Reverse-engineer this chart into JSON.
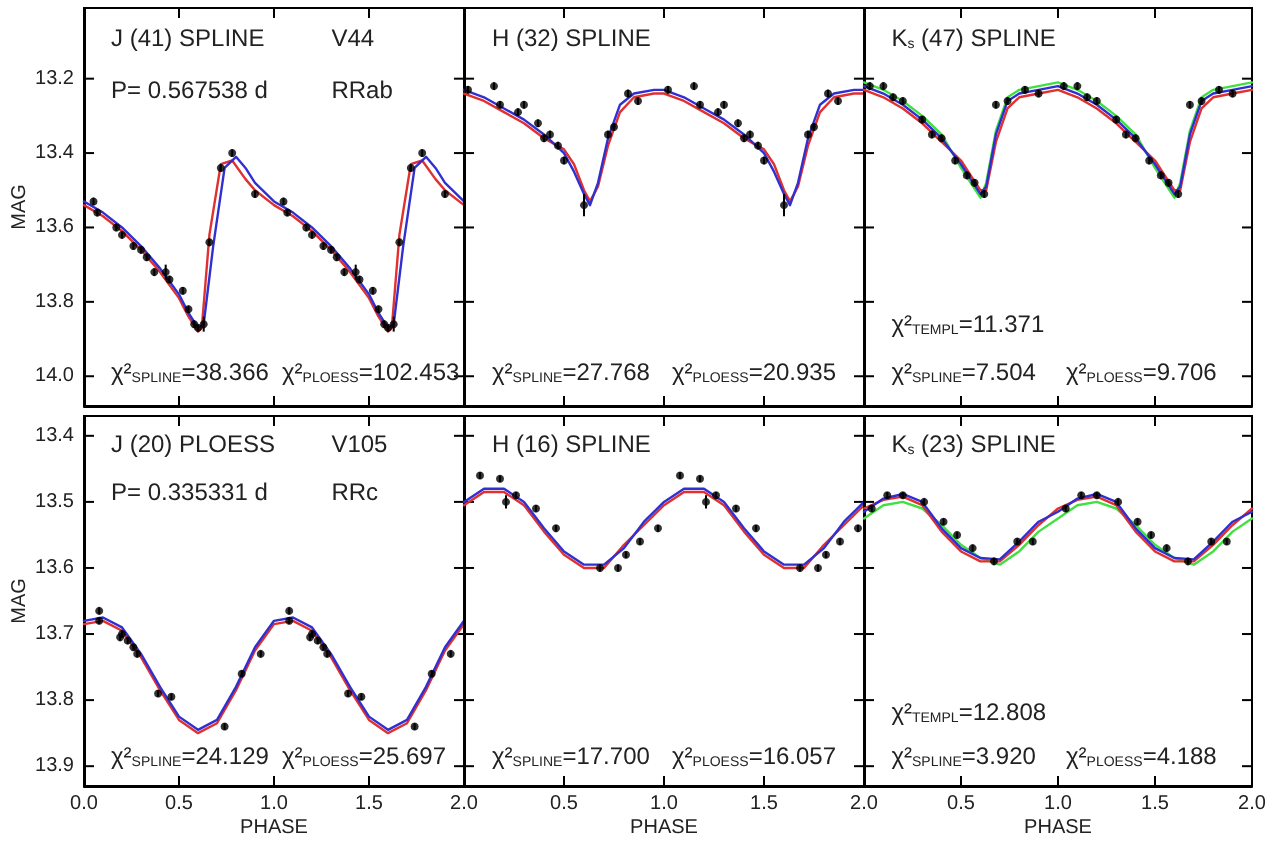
{
  "chart_data": [
    {
      "type": "scatter",
      "ylabel": "MAG",
      "tick_labels": "y",
      "annotations": [
        "J (41) SPLINE",
        "V44",
        "P= 0.567538 d",
        "RRab",
        "χ²$_{SPLINE}$=38.366",
        "χ²$_{PLOESS}$=102.453"
      ],
      "xlim": [
        0,
        2
      ],
      "xticks": [
        0,
        0.5,
        1,
        1.5,
        2
      ],
      "ylim": [
        14.08,
        13.01
      ],
      "yticks": [
        13.2,
        13.4,
        13.6,
        13.8,
        {
          "value": 14,
          "label": "14.0"
        }
      ],
      "series": [
        {
          "type": "line",
          "color": "#e03030",
          "line_style": "solid",
          "marker": "none",
          "x": [
            0,
            0.1,
            0.2,
            0.3,
            0.4,
            0.5,
            0.55,
            0.6,
            0.62,
            0.66,
            0.72,
            0.78,
            0.85,
            0.9,
            1,
            1.1,
            1.2,
            1.3,
            1.4,
            1.5,
            1.55,
            1.6,
            1.62,
            1.66,
            1.72,
            1.78,
            1.85,
            1.9,
            2
          ],
          "values": [
            13.54,
            13.57,
            13.61,
            13.66,
            13.72,
            13.79,
            13.84,
            13.88,
            13.87,
            13.62,
            13.43,
            13.42,
            13.47,
            13.5,
            13.54,
            13.57,
            13.61,
            13.66,
            13.72,
            13.79,
            13.84,
            13.88,
            13.87,
            13.62,
            13.43,
            13.42,
            13.47,
            13.5,
            13.54
          ]
        },
        {
          "type": "line",
          "color": "#3030d0",
          "line_style": "solid",
          "marker": "none",
          "x": [
            0,
            0.1,
            0.2,
            0.3,
            0.4,
            0.5,
            0.55,
            0.6,
            0.63,
            0.68,
            0.74,
            0.8,
            0.85,
            0.9,
            1,
            1.1,
            1.2,
            1.3,
            1.4,
            1.5,
            1.55,
            1.6,
            1.63,
            1.68,
            1.74,
            1.8,
            1.85,
            1.9,
            2
          ],
          "values": [
            13.53,
            13.56,
            13.6,
            13.65,
            13.71,
            13.78,
            13.83,
            13.87,
            13.86,
            13.65,
            13.44,
            13.41,
            13.44,
            13.48,
            13.53,
            13.56,
            13.6,
            13.65,
            13.71,
            13.78,
            13.83,
            13.87,
            13.86,
            13.65,
            13.44,
            13.41,
            13.44,
            13.48,
            13.53
          ]
        },
        {
          "color": "#000000",
          "marker": "circle",
          "x": [
            0.05,
            0.07,
            0.17,
            0.2,
            0.26,
            0.3,
            0.33,
            0.37,
            0.43,
            0.45,
            0.52,
            0.55,
            0.58,
            0.6,
            0.63,
            0.66,
            0.72,
            0.78,
            0.9,
            1.05,
            1.07,
            1.17,
            1.2,
            1.26,
            1.3,
            1.33,
            1.37,
            1.43,
            1.45,
            1.52,
            1.55,
            1.58,
            1.6,
            1.63,
            1.66,
            1.72,
            1.78,
            1.9
          ],
          "values": [
            13.53,
            13.56,
            13.6,
            13.62,
            13.65,
            13.66,
            13.68,
            13.72,
            13.72,
            13.74,
            13.77,
            13.82,
            13.86,
            13.87,
            13.86,
            13.64,
            13.44,
            13.4,
            13.51,
            13.53,
            13.56,
            13.6,
            13.62,
            13.65,
            13.66,
            13.68,
            13.72,
            13.72,
            13.74,
            13.77,
            13.82,
            13.86,
            13.87,
            13.86,
            13.64,
            13.44,
            13.4,
            13.51
          ],
          "errors": [
            0.01,
            0.01,
            0.01,
            0.01,
            0.01,
            0.01,
            0.01,
            0.01,
            0.02,
            0.01,
            0.01,
            0.01,
            0.01,
            0.01,
            0.02,
            0.01,
            0.01,
            0.01,
            0.01,
            0.01,
            0.01,
            0.01,
            0.01,
            0.01,
            0.01,
            0.01,
            0.01,
            0.02,
            0.01,
            0.01,
            0.01,
            0.01,
            0.01,
            0.02,
            0.01,
            0.01,
            0.01,
            0.01
          ]
        }
      ]
    },
    {
      "type": "scatter",
      "tick_labels": false,
      "annotations": [
        "H (32) SPLINE",
        "χ²$_{SPLINE}$=27.768",
        "χ²$_{PLOESS}$=20.935"
      ],
      "xlim": [
        0,
        2
      ],
      "xticks": [
        0,
        0.5,
        1,
        1.5,
        2
      ],
      "ylim": [
        14.08,
        13.01
      ],
      "yticks": [
        13.2,
        13.4,
        13.6,
        13.8,
        14
      ],
      "series": [
        {
          "type": "line",
          "color": "#e03030",
          "line_style": "solid",
          "marker": "none",
          "x": [
            0,
            0.1,
            0.2,
            0.3,
            0.4,
            0.5,
            0.55,
            0.6,
            0.63,
            0.67,
            0.72,
            0.78,
            0.85,
            0.95,
            1,
            1.1,
            1.2,
            1.3,
            1.4,
            1.5,
            1.55,
            1.6,
            1.63,
            1.67,
            1.72,
            1.78,
            1.85,
            1.95,
            2
          ],
          "values": [
            13.24,
            13.26,
            13.29,
            13.32,
            13.36,
            13.39,
            13.43,
            13.5,
            13.53,
            13.49,
            13.38,
            13.29,
            13.25,
            13.24,
            13.24,
            13.26,
            13.29,
            13.32,
            13.36,
            13.39,
            13.43,
            13.5,
            13.53,
            13.49,
            13.38,
            13.29,
            13.25,
            13.24,
            13.24
          ]
        },
        {
          "type": "line",
          "color": "#3030d0",
          "line_style": "solid",
          "marker": "none",
          "x": [
            0,
            0.1,
            0.2,
            0.3,
            0.4,
            0.5,
            0.55,
            0.6,
            0.63,
            0.67,
            0.72,
            0.78,
            0.85,
            0.95,
            1,
            1.1,
            1.2,
            1.3,
            1.4,
            1.5,
            1.55,
            1.6,
            1.63,
            1.67,
            1.72,
            1.78,
            1.85,
            1.95,
            2
          ],
          "values": [
            13.23,
            13.25,
            13.28,
            13.31,
            13.35,
            13.4,
            13.45,
            13.51,
            13.54,
            13.48,
            13.36,
            13.27,
            13.24,
            13.23,
            13.23,
            13.25,
            13.28,
            13.31,
            13.35,
            13.4,
            13.45,
            13.51,
            13.54,
            13.48,
            13.36,
            13.27,
            13.24,
            13.23,
            13.23
          ]
        },
        {
          "color": "#000000",
          "marker": "circle",
          "x": [
            0.02,
            0.15,
            0.18,
            0.27,
            0.3,
            0.37,
            0.4,
            0.43,
            0.47,
            0.5,
            0.6,
            0.72,
            0.75,
            0.82,
            0.87,
            1.02,
            1.15,
            1.18,
            1.27,
            1.3,
            1.37,
            1.4,
            1.43,
            1.47,
            1.5,
            1.6,
            1.72,
            1.75,
            1.82,
            1.87
          ],
          "values": [
            13.23,
            13.22,
            13.27,
            13.29,
            13.27,
            13.32,
            13.36,
            13.35,
            13.38,
            13.42,
            13.54,
            13.35,
            13.33,
            13.24,
            13.26,
            13.23,
            13.22,
            13.27,
            13.29,
            13.27,
            13.32,
            13.36,
            13.35,
            13.38,
            13.42,
            13.54,
            13.35,
            13.33,
            13.24,
            13.26
          ],
          "errors": [
            0.01,
            0.01,
            0.01,
            0.01,
            0.01,
            0.01,
            0.01,
            0.01,
            0.01,
            0.01,
            0.03,
            0.01,
            0.01,
            0.01,
            0.01,
            0.01,
            0.01,
            0.01,
            0.01,
            0.01,
            0.01,
            0.01,
            0.01,
            0.01,
            0.01,
            0.03,
            0.01,
            0.01,
            0.01,
            0.01
          ]
        }
      ]
    },
    {
      "type": "scatter",
      "tick_labels": false,
      "annotations": [
        "K$_{s}$ (47) SPLINE",
        "χ²$_{TEMPL}$=11.371",
        "χ²$_{SPLINE}$=7.504",
        "χ²$_{PLOESS}$=9.706"
      ],
      "xlim": [
        0,
        2
      ],
      "xticks": [
        0,
        0.5,
        1,
        1.5,
        2
      ],
      "ylim": [
        14.08,
        13.01
      ],
      "yticks": [
        13.2,
        13.4,
        13.6,
        13.8,
        14
      ],
      "series": [
        {
          "type": "line",
          "color": "#40e040",
          "line_style": "solid",
          "marker": "none",
          "x": [
            0,
            0.1,
            0.2,
            0.3,
            0.4,
            0.5,
            0.55,
            0.6,
            0.63,
            0.68,
            0.74,
            0.8,
            0.9,
            1,
            1.1,
            1.2,
            1.3,
            1.4,
            1.5,
            1.55,
            1.6,
            1.63,
            1.68,
            1.74,
            1.8,
            1.9,
            2
          ],
          "values": [
            13.21,
            13.23,
            13.26,
            13.3,
            13.35,
            13.44,
            13.48,
            13.52,
            13.48,
            13.34,
            13.25,
            13.23,
            13.22,
            13.21,
            13.23,
            13.26,
            13.3,
            13.35,
            13.44,
            13.48,
            13.52,
            13.48,
            13.34,
            13.25,
            13.23,
            13.22,
            13.21
          ]
        },
        {
          "type": "line",
          "color": "#e03030",
          "line_style": "solid",
          "marker": "none",
          "x": [
            0,
            0.1,
            0.2,
            0.3,
            0.4,
            0.5,
            0.55,
            0.6,
            0.63,
            0.68,
            0.74,
            0.8,
            0.9,
            1,
            1.1,
            1.2,
            1.3,
            1.4,
            1.5,
            1.55,
            1.6,
            1.63,
            1.68,
            1.74,
            1.8,
            1.9,
            2
          ],
          "values": [
            13.23,
            13.25,
            13.28,
            13.32,
            13.37,
            13.42,
            13.46,
            13.5,
            13.5,
            13.37,
            13.28,
            13.25,
            13.24,
            13.23,
            13.25,
            13.28,
            13.32,
            13.37,
            13.42,
            13.46,
            13.5,
            13.5,
            13.37,
            13.28,
            13.25,
            13.24,
            13.23
          ]
        },
        {
          "type": "line",
          "color": "#3030d0",
          "line_style": "solid",
          "marker": "none",
          "x": [
            0,
            0.1,
            0.2,
            0.3,
            0.4,
            0.5,
            0.55,
            0.6,
            0.63,
            0.68,
            0.74,
            0.8,
            0.9,
            1,
            1.1,
            1.2,
            1.3,
            1.4,
            1.5,
            1.55,
            1.6,
            1.63,
            1.68,
            1.74,
            1.8,
            1.9,
            2
          ],
          "values": [
            13.22,
            13.24,
            13.27,
            13.31,
            13.36,
            13.43,
            13.47,
            13.51,
            13.49,
            13.35,
            13.26,
            13.24,
            13.23,
            13.22,
            13.24,
            13.27,
            13.31,
            13.36,
            13.43,
            13.47,
            13.51,
            13.49,
            13.35,
            13.26,
            13.24,
            13.23,
            13.22
          ]
        },
        {
          "color": "#000000",
          "marker": "circle",
          "x": [
            0.03,
            0.1,
            0.15,
            0.2,
            0.3,
            0.35,
            0.4,
            0.47,
            0.53,
            0.57,
            0.62,
            0.68,
            0.74,
            0.83,
            0.9,
            1.03,
            1.1,
            1.15,
            1.2,
            1.3,
            1.35,
            1.4,
            1.47,
            1.53,
            1.57,
            1.62,
            1.68,
            1.74,
            1.83,
            1.9
          ],
          "values": [
            13.22,
            13.22,
            13.25,
            13.26,
            13.31,
            13.35,
            13.36,
            13.42,
            13.46,
            13.48,
            13.51,
            13.27,
            13.26,
            13.23,
            13.24,
            13.22,
            13.22,
            13.25,
            13.26,
            13.31,
            13.35,
            13.36,
            13.42,
            13.46,
            13.48,
            13.51,
            13.27,
            13.26,
            13.23,
            13.24
          ],
          "errors": [
            0.01,
            0.01,
            0.01,
            0.01,
            0.01,
            0.01,
            0.01,
            0.01,
            0.01,
            0.01,
            0.01,
            0.01,
            0.01,
            0.01,
            0.01,
            0.01,
            0.01,
            0.01,
            0.01,
            0.01,
            0.01,
            0.01,
            0.01,
            0.01,
            0.01,
            0.01,
            0.01,
            0.01,
            0.01,
            0.01
          ]
        }
      ]
    },
    {
      "type": "scatter",
      "xlabel": "PHASE",
      "ylabel": "MAG",
      "annotations": [
        "J (20) PLOESS",
        "V105",
        "P= 0.335331 d",
        "RRc",
        "χ²$_{SPLINE}$=24.129",
        "χ²$_{PLOESS}$=25.697"
      ],
      "xlim": [
        0,
        2
      ],
      "xticks": [
        {
          "value": 0,
          "label": "0.0"
        },
        0.5,
        {
          "value": 1,
          "label": "1.0"
        },
        1.5,
        {
          "value": 2,
          "label": "2.0"
        }
      ],
      "ylim": [
        13.93,
        13.37
      ],
      "yticks": [
        13.4,
        13.5,
        13.6,
        13.7,
        13.8,
        13.9
      ],
      "series": [
        {
          "type": "line",
          "color": "#e03030",
          "line_style": "solid",
          "marker": "none",
          "x": [
            0,
            0.1,
            0.2,
            0.3,
            0.4,
            0.5,
            0.6,
            0.7,
            0.8,
            0.9,
            1,
            1.1,
            1.2,
            1.3,
            1.4,
            1.5,
            1.6,
            1.7,
            1.8,
            1.9,
            2
          ],
          "values": [
            13.685,
            13.68,
            13.695,
            13.735,
            13.785,
            13.83,
            13.85,
            13.835,
            13.785,
            13.725,
            13.685,
            13.68,
            13.695,
            13.735,
            13.785,
            13.83,
            13.85,
            13.835,
            13.785,
            13.725,
            13.685
          ]
        },
        {
          "type": "line",
          "color": "#3030d0",
          "line_style": "solid",
          "marker": "none",
          "x": [
            0,
            0.1,
            0.2,
            0.3,
            0.4,
            0.5,
            0.6,
            0.7,
            0.8,
            0.9,
            1,
            1.1,
            1.2,
            1.3,
            1.4,
            1.5,
            1.6,
            1.7,
            1.8,
            1.9,
            2
          ],
          "values": [
            13.68,
            13.675,
            13.69,
            13.73,
            13.78,
            13.825,
            13.845,
            13.83,
            13.78,
            13.72,
            13.68,
            13.675,
            13.69,
            13.73,
            13.78,
            13.825,
            13.845,
            13.83,
            13.78,
            13.72,
            13.68
          ]
        },
        {
          "color": "#000000",
          "marker": "circle",
          "x": [
            0.08,
            0.08,
            0.19,
            0.2,
            0.23,
            0.26,
            0.28,
            0.39,
            0.46,
            0.74,
            0.83,
            0.93,
            1.08,
            1.08,
            1.19,
            1.2,
            1.23,
            1.26,
            1.28,
            1.39,
            1.46,
            1.74,
            1.83,
            1.93
          ],
          "values": [
            13.665,
            13.68,
            13.705,
            13.7,
            13.71,
            13.72,
            13.73,
            13.79,
            13.795,
            13.84,
            13.76,
            13.73,
            13.665,
            13.68,
            13.705,
            13.7,
            13.71,
            13.72,
            13.73,
            13.79,
            13.795,
            13.84,
            13.76,
            13.73
          ],
          "errors": [
            0.005,
            0.005,
            0.005,
            0.005,
            0.005,
            0.005,
            0.005,
            0.005,
            0.005,
            0.005,
            0.005,
            0.005,
            0.005,
            0.005,
            0.005,
            0.005,
            0.005,
            0.005,
            0.005,
            0.005,
            0.005,
            0.005,
            0.005,
            0.005
          ]
        }
      ]
    },
    {
      "type": "scatter",
      "xlabel": "PHASE",
      "tick_labels": "x",
      "annotations": [
        "H (16) SPLINE",
        "χ²$_{SPLINE}$=17.700",
        "χ²$_{PLOESS}$=16.057"
      ],
      "xlim": [
        0,
        2
      ],
      "xticks": [
        {
          "value": 0,
          "label": null
        },
        0.5,
        {
          "value": 1,
          "label": "1.0"
        },
        1.5,
        {
          "value": 2,
          "label": "2.0"
        }
      ],
      "ylim": [
        13.93,
        13.37
      ],
      "yticks": [
        13.4,
        13.5,
        13.6,
        13.7,
        13.8,
        13.9
      ],
      "series": [
        {
          "type": "line",
          "color": "#e03030",
          "line_style": "solid",
          "marker": "none",
          "x": [
            0,
            0.1,
            0.2,
            0.3,
            0.4,
            0.5,
            0.6,
            0.7,
            0.8,
            0.9,
            1,
            1.1,
            1.2,
            1.3,
            1.4,
            1.5,
            1.6,
            1.7,
            1.8,
            1.9,
            2
          ],
          "values": [
            13.505,
            13.485,
            13.485,
            13.505,
            13.545,
            13.58,
            13.6,
            13.6,
            13.565,
            13.535,
            13.505,
            13.485,
            13.485,
            13.505,
            13.545,
            13.58,
            13.6,
            13.6,
            13.565,
            13.535,
            13.505
          ]
        },
        {
          "type": "line",
          "color": "#3030d0",
          "line_style": "solid",
          "marker": "none",
          "x": [
            0,
            0.1,
            0.2,
            0.3,
            0.4,
            0.5,
            0.6,
            0.7,
            0.8,
            0.9,
            1,
            1.1,
            1.2,
            1.3,
            1.4,
            1.5,
            1.6,
            1.7,
            1.8,
            1.9,
            2
          ],
          "values": [
            13.5,
            13.48,
            13.48,
            13.5,
            13.54,
            13.575,
            13.595,
            13.595,
            13.57,
            13.53,
            13.5,
            13.48,
            13.48,
            13.5,
            13.54,
            13.575,
            13.595,
            13.595,
            13.57,
            13.53,
            13.5
          ]
        },
        {
          "color": "#000000",
          "marker": "circle",
          "x": [
            0.08,
            0.18,
            0.21,
            0.26,
            0.36,
            0.46,
            0.68,
            0.77,
            0.81,
            0.88,
            0.97,
            1.08,
            1.18,
            1.21,
            1.26,
            1.36,
            1.46,
            1.68,
            1.77,
            1.81,
            1.88,
            1.97
          ],
          "values": [
            13.46,
            13.465,
            13.5,
            13.49,
            13.51,
            13.54,
            13.6,
            13.6,
            13.58,
            13.56,
            13.54,
            13.46,
            13.465,
            13.5,
            13.49,
            13.51,
            13.54,
            13.6,
            13.6,
            13.58,
            13.56,
            13.54
          ],
          "errors": [
            0.005,
            0.005,
            0.01,
            0.005,
            0.005,
            0.005,
            0.005,
            0.005,
            0.005,
            0.005,
            0.005,
            0.005,
            0.005,
            0.01,
            0.005,
            0.005,
            0.005,
            0.005,
            0.005,
            0.005,
            0.005,
            0.005
          ]
        }
      ]
    },
    {
      "type": "scatter",
      "xlabel": "PHASE",
      "tick_labels": "x",
      "annotations": [
        "K$_{s}$ (23) SPLINE",
        "χ²$_{TEMPL}$=12.808",
        "χ²$_{SPLINE}$=3.920",
        "χ²$_{PLOESS}$=4.188"
      ],
      "xlim": [
        0,
        2
      ],
      "xticks": [
        {
          "value": 0,
          "label": null
        },
        0.5,
        {
          "value": 1,
          "label": "1.0"
        },
        1.5,
        {
          "value": 2,
          "label": "2.0"
        }
      ],
      "ylim": [
        13.93,
        13.37
      ],
      "yticks": [
        13.4,
        13.5,
        13.6,
        13.7,
        13.8,
        13.9
      ],
      "series": [
        {
          "type": "line",
          "color": "#40e040",
          "line_style": "solid",
          "marker": "none",
          "x": [
            0,
            0.1,
            0.2,
            0.3,
            0.4,
            0.5,
            0.6,
            0.7,
            0.8,
            0.9,
            1,
            1.1,
            1.2,
            1.3,
            1.4,
            1.5,
            1.6,
            1.7,
            1.8,
            1.9,
            2
          ],
          "values": [
            13.525,
            13.505,
            13.5,
            13.51,
            13.535,
            13.565,
            13.585,
            13.595,
            13.575,
            13.545,
            13.525,
            13.505,
            13.5,
            13.51,
            13.535,
            13.565,
            13.585,
            13.595,
            13.575,
            13.545,
            13.525
          ]
        },
        {
          "type": "line",
          "color": "#e03030",
          "line_style": "solid",
          "marker": "none",
          "x": [
            0,
            0.1,
            0.2,
            0.3,
            0.4,
            0.5,
            0.6,
            0.7,
            0.8,
            0.9,
            1,
            1.1,
            1.2,
            1.3,
            1.4,
            1.5,
            1.6,
            1.7,
            1.8,
            1.9,
            2
          ],
          "values": [
            13.51,
            13.497,
            13.492,
            13.505,
            13.545,
            13.575,
            13.59,
            13.59,
            13.565,
            13.535,
            13.51,
            13.497,
            13.492,
            13.505,
            13.545,
            13.575,
            13.59,
            13.59,
            13.565,
            13.535,
            13.51
          ]
        },
        {
          "type": "line",
          "color": "#3030d0",
          "line_style": "solid",
          "marker": "none",
          "x": [
            0,
            0.1,
            0.2,
            0.3,
            0.4,
            0.5,
            0.6,
            0.7,
            0.8,
            0.9,
            1,
            1.1,
            1.2,
            1.3,
            1.4,
            1.5,
            1.6,
            1.7,
            1.8,
            1.9,
            2
          ],
          "values": [
            13.515,
            13.495,
            13.488,
            13.5,
            13.54,
            13.57,
            13.585,
            13.587,
            13.56,
            13.53,
            13.515,
            13.495,
            13.488,
            13.5,
            13.54,
            13.57,
            13.585,
            13.587,
            13.56,
            13.53,
            13.515
          ]
        },
        {
          "color": "#000000",
          "marker": "circle",
          "x": [
            0.04,
            0.12,
            0.2,
            0.31,
            0.41,
            0.48,
            0.56,
            0.67,
            0.79,
            0.87,
            1.04,
            1.12,
            1.2,
            1.31,
            1.41,
            1.48,
            1.56,
            1.67,
            1.79,
            1.87
          ],
          "values": [
            13.51,
            13.49,
            13.49,
            13.5,
            13.53,
            13.55,
            13.57,
            13.59,
            13.56,
            13.56,
            13.51,
            13.49,
            13.49,
            13.5,
            13.53,
            13.55,
            13.57,
            13.59,
            13.56,
            13.56
          ],
          "errors": [
            0.005,
            0.005,
            0.005,
            0.005,
            0.005,
            0.005,
            0.005,
            0.005,
            0.005,
            0.005,
            0.005,
            0.005,
            0.005,
            0.005,
            0.005,
            0.005,
            0.005,
            0.005,
            0.005,
            0.005
          ]
        }
      ]
    }
  ]
}
